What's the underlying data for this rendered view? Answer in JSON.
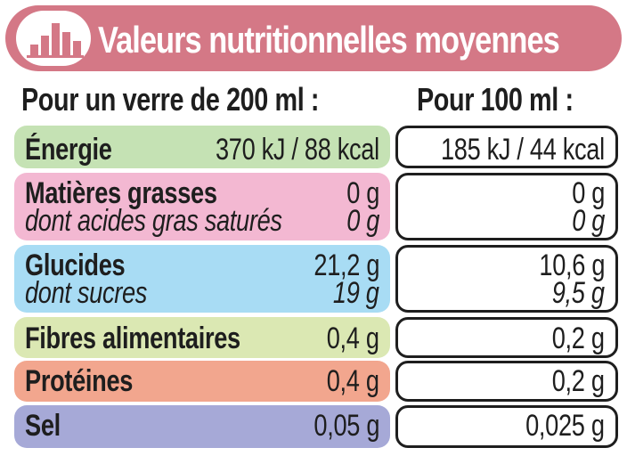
{
  "header": {
    "title": "Valeurs nutritionnelles moyennes",
    "icon": "bar-chart-icon",
    "banner_color": "#d47886"
  },
  "columns": {
    "per_glass": "Pour un verre de 200 ml :",
    "per_100": "Pour 100 ml :"
  },
  "rows": {
    "energie": {
      "color": "#c5e2b4",
      "label": "Énergie",
      "glass": "370 kJ / 88 kcal",
      "per100": "185 kJ / 44 kcal"
    },
    "matieres": {
      "color": "#f3b8d2",
      "label": "Matières grasses",
      "glass": "0 g",
      "per100": "0 g",
      "sub_label": "dont acides gras saturés",
      "sub_glass": "0 g",
      "sub_per100": "0 g"
    },
    "glucides": {
      "color": "#a8dcf4",
      "label": "Glucides",
      "glass": "21,2 g",
      "per100": "10,6 g",
      "sub_label": "dont sucres",
      "sub_glass": "19 g",
      "sub_per100": "9,5 g"
    },
    "fibres": {
      "color": "#dbe8b3",
      "label": "Fibres alimentaires",
      "glass": "0,4 g",
      "per100": "0,2 g"
    },
    "proteines": {
      "color": "#f2a68e",
      "label": "Protéines",
      "glass": "0,4 g",
      "per100": "0,2 g"
    },
    "sel": {
      "color": "#a6a9d7",
      "label": "Sel",
      "glass": "0,05 g",
      "per100": "0,025 g"
    }
  }
}
